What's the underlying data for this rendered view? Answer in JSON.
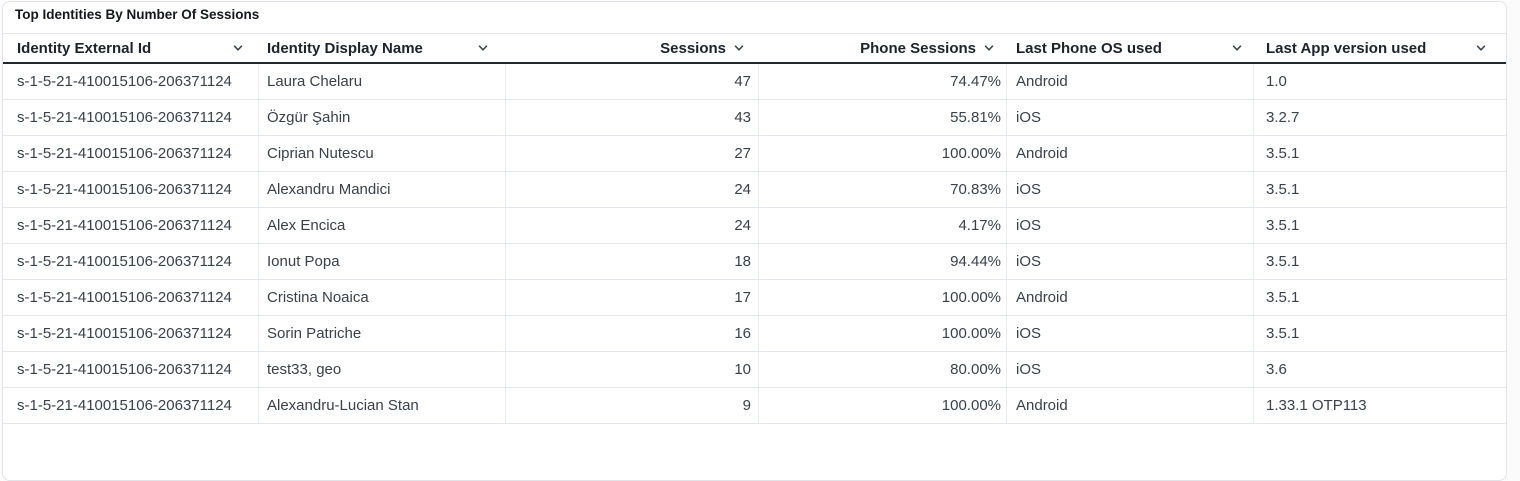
{
  "title": "Top Identities By Number Of Sessions",
  "colors": {
    "header_border": "#23282d",
    "row_separator": "#e3e7ec",
    "header_text": "#1c232b",
    "row_text": "#3a414a",
    "card_border": "#e0e3e8",
    "chevron": "#3b434b"
  },
  "table": {
    "columns": [
      {
        "key": "external_id",
        "label": "Identity External Id",
        "align": "left",
        "sort_icon": "chevron-down-icon"
      },
      {
        "key": "display_name",
        "label": "Identity Display Name",
        "align": "left",
        "sort_icon": "chevron-down-icon"
      },
      {
        "key": "sessions",
        "label": "Sessions",
        "align": "right",
        "sort_icon": "chevron-down-icon"
      },
      {
        "key": "phone_sessions",
        "label": "Phone Sessions",
        "align": "right",
        "sort_icon": "chevron-down-icon"
      },
      {
        "key": "last_phone_os",
        "label": "Last Phone OS used",
        "align": "left",
        "sort_icon": "chevron-down-icon"
      },
      {
        "key": "last_app_version",
        "label": "Last App version used",
        "align": "left",
        "sort_icon": "chevron-down-icon"
      }
    ],
    "rows": [
      {
        "external_id": "s-1-5-21-410015106-206371124",
        "display_name": "Laura Chelaru",
        "sessions": "47",
        "phone_sessions": "74.47%",
        "last_phone_os": "Android",
        "last_app_version": "1.0"
      },
      {
        "external_id": "s-1-5-21-410015106-206371124",
        "display_name": "Özgür Şahin",
        "sessions": "43",
        "phone_sessions": "55.81%",
        "last_phone_os": "iOS",
        "last_app_version": "3.2.7"
      },
      {
        "external_id": "s-1-5-21-410015106-206371124",
        "display_name": "Ciprian Nutescu",
        "sessions": "27",
        "phone_sessions": "100.00%",
        "last_phone_os": "Android",
        "last_app_version": "3.5.1"
      },
      {
        "external_id": "s-1-5-21-410015106-206371124",
        "display_name": "Alexandru Mandici",
        "sessions": "24",
        "phone_sessions": "70.83%",
        "last_phone_os": "iOS",
        "last_app_version": "3.5.1"
      },
      {
        "external_id": "s-1-5-21-410015106-206371124",
        "display_name": "Alex Encica",
        "sessions": "24",
        "phone_sessions": "4.17%",
        "last_phone_os": "iOS",
        "last_app_version": "3.5.1"
      },
      {
        "external_id": "s-1-5-21-410015106-206371124",
        "display_name": "Ionut Popa",
        "sessions": "18",
        "phone_sessions": "94.44%",
        "last_phone_os": "iOS",
        "last_app_version": "3.5.1"
      },
      {
        "external_id": "s-1-5-21-410015106-206371124",
        "display_name": "Cristina Noaica",
        "sessions": "17",
        "phone_sessions": "100.00%",
        "last_phone_os": "Android",
        "last_app_version": "3.5.1"
      },
      {
        "external_id": "s-1-5-21-410015106-206371124",
        "display_name": "Sorin Patriche",
        "sessions": "16",
        "phone_sessions": "100.00%",
        "last_phone_os": "iOS",
        "last_app_version": "3.5.1"
      },
      {
        "external_id": "s-1-5-21-410015106-206371124",
        "display_name": "test33, geo",
        "sessions": "10",
        "phone_sessions": "80.00%",
        "last_phone_os": "iOS",
        "last_app_version": "3.6"
      },
      {
        "external_id": "s-1-5-21-410015106-206371124",
        "display_name": "Alexandru-Lucian Stan",
        "sessions": "9",
        "phone_sessions": "100.00%",
        "last_phone_os": "Android",
        "last_app_version": "1.33.1 OTP113"
      }
    ]
  }
}
